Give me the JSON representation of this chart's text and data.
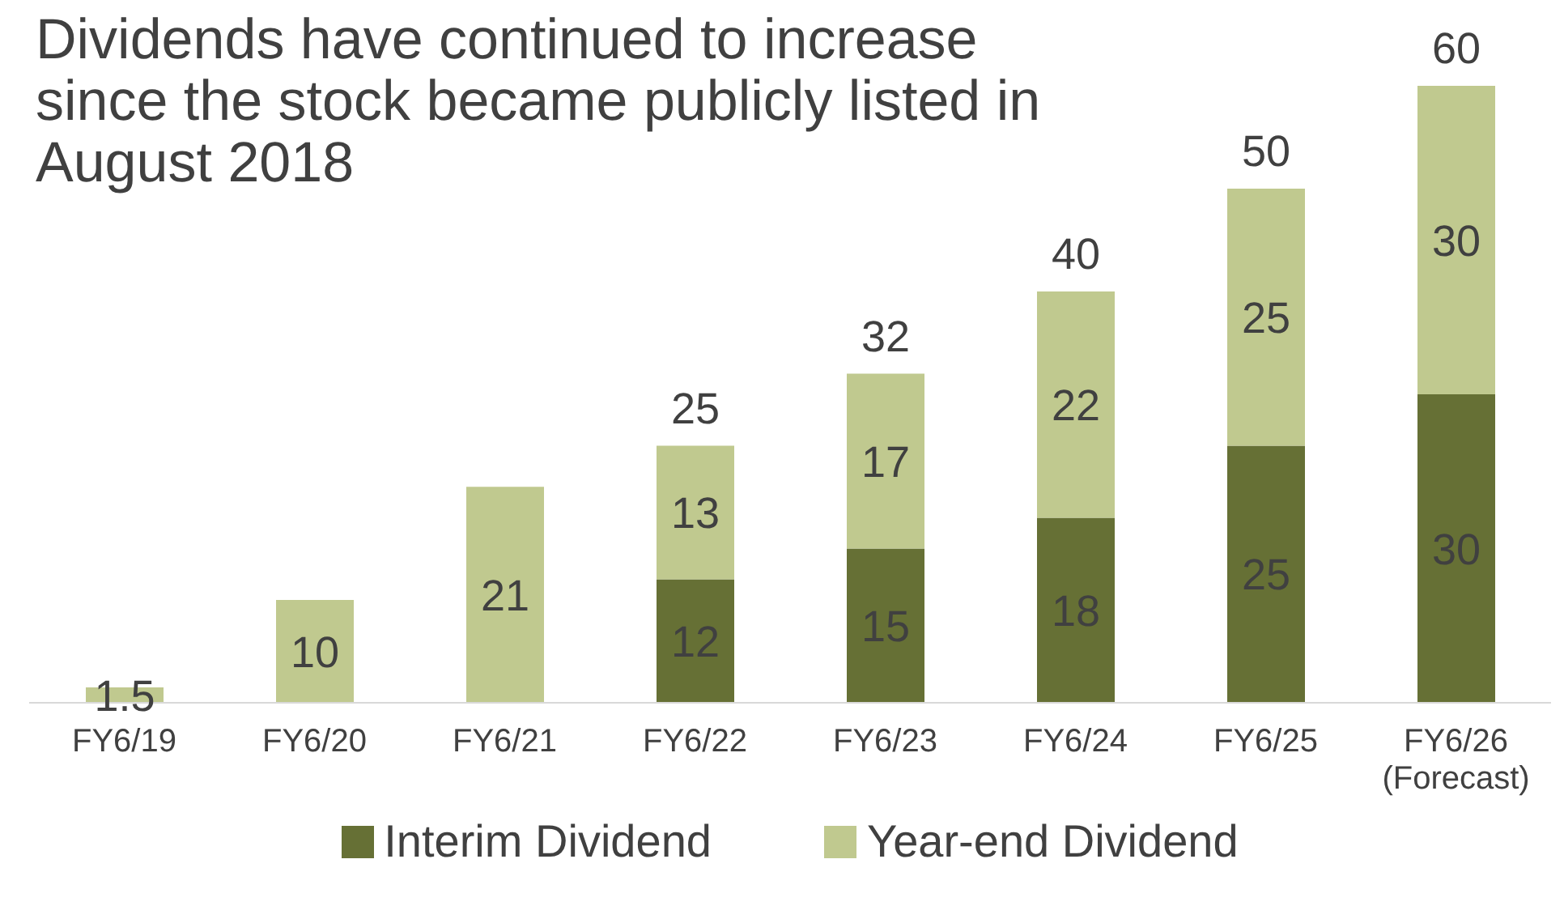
{
  "chart_data": {
    "type": "bar",
    "title": "Dividends have continued to increase since the stock became publicly listed in August 2018",
    "categories": [
      "FY6/19",
      "FY6/20",
      "FY6/21",
      "FY6/22",
      "FY6/23",
      "FY6/24",
      "FY6/25",
      "FY6/26\n(Forecast)"
    ],
    "stacked": true,
    "series": [
      {
        "name": "Interim Dividend",
        "color": "#667035",
        "values": [
          null,
          null,
          null,
          12,
          15,
          18,
          25,
          30
        ]
      },
      {
        "name": "Year-end Dividend",
        "color": "#c0c98f",
        "values": [
          1.5,
          10,
          21,
          13,
          17,
          22,
          25,
          30
        ]
      }
    ],
    "totals": [
      null,
      null,
      null,
      "25",
      "32",
      "40",
      "50",
      "60"
    ],
    "data_labels": true,
    "legend": "bottom"
  }
}
